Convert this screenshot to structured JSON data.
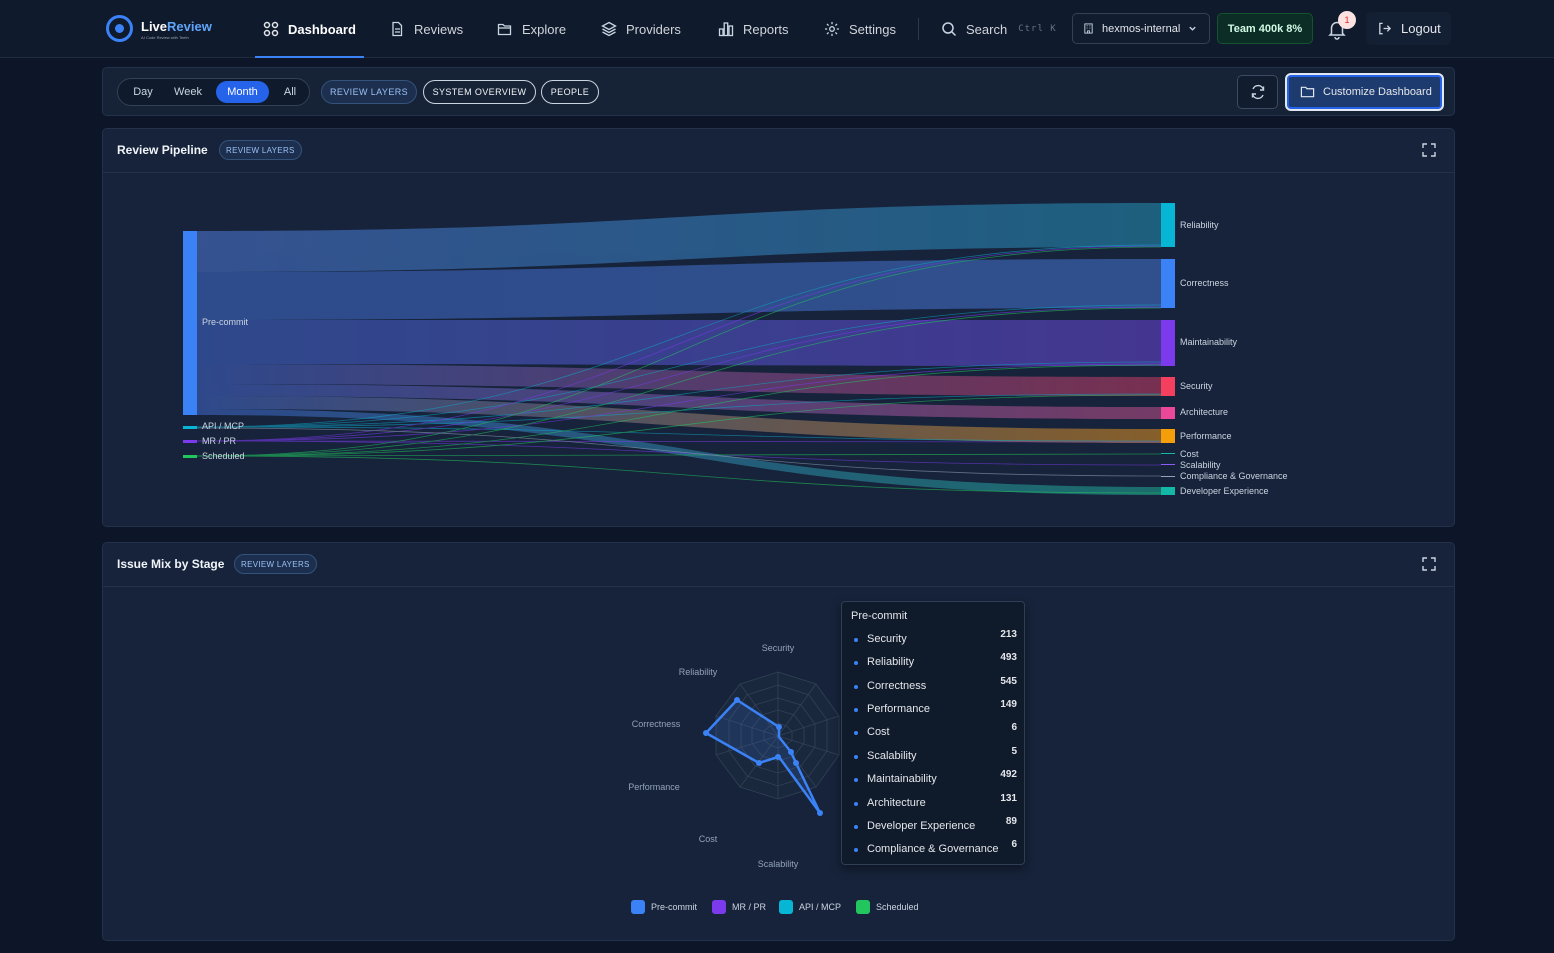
{
  "brand": {
    "name_part1": "Live",
    "name_part2": "Review",
    "tagline": "AI Code Review with Teeth"
  },
  "nav": {
    "dashboard": "Dashboard",
    "reviews": "Reviews",
    "explore": "Explore",
    "providers": "Providers",
    "reports": "Reports",
    "settings": "Settings",
    "search": "Search",
    "search_shortcut": "Ctrl K"
  },
  "header": {
    "org": "hexmos-internal",
    "team_badge": "Team 400k 8%",
    "notification_count": "1",
    "logout": "Logout"
  },
  "toolbar": {
    "ranges": [
      "Day",
      "Week",
      "Month",
      "All"
    ],
    "selected_range": "Month",
    "views": [
      "REVIEW LAYERS",
      "SYSTEM OVERVIEW",
      "PEOPLE"
    ],
    "customize": "Customize Dashboard"
  },
  "pipeline": {
    "title": "Review Pipeline",
    "tag": "REVIEW LAYERS",
    "sources": [
      {
        "name": "Pre-commit",
        "color": "#3b82f6"
      },
      {
        "name": "API / MCP",
        "color": "#06b6d4"
      },
      {
        "name": "MR / PR",
        "color": "#7c3aed"
      },
      {
        "name": "Scheduled",
        "color": "#22c55e"
      }
    ],
    "targets": [
      {
        "name": "Reliability",
        "color": "#06b6d4"
      },
      {
        "name": "Correctness",
        "color": "#3b82f6"
      },
      {
        "name": "Maintainability",
        "color": "#7c3aed"
      },
      {
        "name": "Security",
        "color": "#f43f5e"
      },
      {
        "name": "Architecture",
        "color": "#ec4899"
      },
      {
        "name": "Performance",
        "color": "#f59e0b"
      },
      {
        "name": "Cost",
        "color": "#14b8a6"
      },
      {
        "name": "Scalability",
        "color": "#8b5cf6"
      },
      {
        "name": "Compliance & Governance",
        "color": "#94a3b8"
      },
      {
        "name": "Developer Experience",
        "color": "#14b8a6"
      }
    ]
  },
  "issue_mix": {
    "title": "Issue Mix by Stage",
    "tag": "REVIEW LAYERS",
    "axes": [
      "Security",
      "Reliability",
      "Correctness",
      "Performance",
      "Cost",
      "Scalability"
    ],
    "tooltip": {
      "title": "Pre-commit",
      "rows": [
        {
          "name": "Security",
          "value": "213"
        },
        {
          "name": "Reliability",
          "value": "493"
        },
        {
          "name": "Correctness",
          "value": "545"
        },
        {
          "name": "Performance",
          "value": "149"
        },
        {
          "name": "Cost",
          "value": "6"
        },
        {
          "name": "Scalability",
          "value": "5"
        },
        {
          "name": "Maintainability",
          "value": "492"
        },
        {
          "name": "Architecture",
          "value": "131"
        },
        {
          "name": "Developer Experience",
          "value": "89"
        },
        {
          "name": "Compliance & Governance",
          "value": "6"
        }
      ]
    },
    "legend": [
      {
        "name": "Pre-commit",
        "color": "#3b82f6"
      },
      {
        "name": "MR / PR",
        "color": "#7c3aed"
      },
      {
        "name": "API / MCP",
        "color": "#06b6d4"
      },
      {
        "name": "Scheduled",
        "color": "#22c55e"
      }
    ]
  }
}
